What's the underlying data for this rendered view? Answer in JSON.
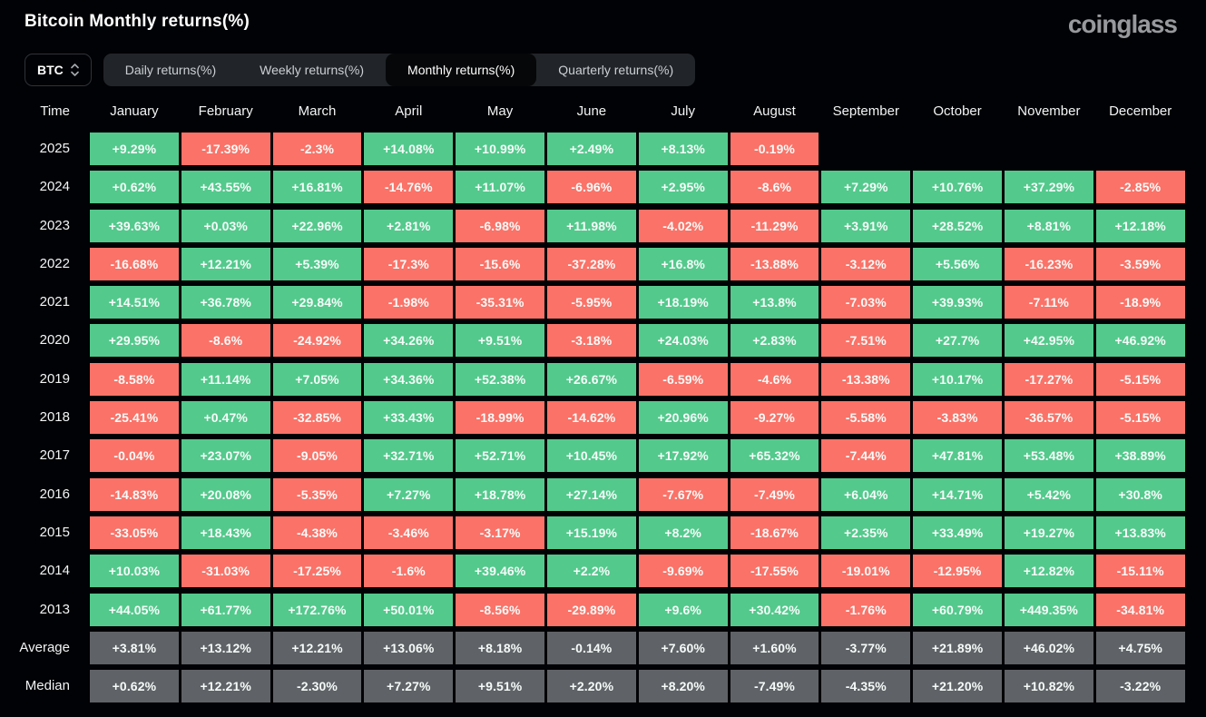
{
  "page": {
    "title": "Bitcoin Monthly returns(%)",
    "logo": "coinglass"
  },
  "controls": {
    "symbol": "BTC",
    "tabs": [
      {
        "label": "Daily returns(%)",
        "active": false
      },
      {
        "label": "Weekly returns(%)",
        "active": false
      },
      {
        "label": "Monthly returns(%)",
        "active": true
      },
      {
        "label": "Quarterly returns(%)",
        "active": false
      }
    ]
  },
  "colors": {
    "positive": "#53c98c",
    "negative": "#fa7268",
    "neutral": "#5f6266",
    "background": "#010205"
  },
  "chart_data": {
    "type": "heatmap",
    "title": "Bitcoin Monthly returns(%)",
    "columns": [
      "Time",
      "January",
      "February",
      "March",
      "April",
      "May",
      "June",
      "July",
      "August",
      "September",
      "October",
      "November",
      "December"
    ],
    "rows": [
      {
        "label": "2025",
        "stat": false,
        "values": [
          "+9.29%",
          "-17.39%",
          "-2.3%",
          "+14.08%",
          "+10.99%",
          "+2.49%",
          "+8.13%",
          "-0.19%",
          "",
          "",
          "",
          ""
        ]
      },
      {
        "label": "2024",
        "stat": false,
        "values": [
          "+0.62%",
          "+43.55%",
          "+16.81%",
          "-14.76%",
          "+11.07%",
          "-6.96%",
          "+2.95%",
          "-8.6%",
          "+7.29%",
          "+10.76%",
          "+37.29%",
          "-2.85%"
        ]
      },
      {
        "label": "2023",
        "stat": false,
        "values": [
          "+39.63%",
          "+0.03%",
          "+22.96%",
          "+2.81%",
          "-6.98%",
          "+11.98%",
          "-4.02%",
          "-11.29%",
          "+3.91%",
          "+28.52%",
          "+8.81%",
          "+12.18%"
        ]
      },
      {
        "label": "2022",
        "stat": false,
        "values": [
          "-16.68%",
          "+12.21%",
          "+5.39%",
          "-17.3%",
          "-15.6%",
          "-37.28%",
          "+16.8%",
          "-13.88%",
          "-3.12%",
          "+5.56%",
          "-16.23%",
          "-3.59%"
        ]
      },
      {
        "label": "2021",
        "stat": false,
        "values": [
          "+14.51%",
          "+36.78%",
          "+29.84%",
          "-1.98%",
          "-35.31%",
          "-5.95%",
          "+18.19%",
          "+13.8%",
          "-7.03%",
          "+39.93%",
          "-7.11%",
          "-18.9%"
        ]
      },
      {
        "label": "2020",
        "stat": false,
        "values": [
          "+29.95%",
          "-8.6%",
          "-24.92%",
          "+34.26%",
          "+9.51%",
          "-3.18%",
          "+24.03%",
          "+2.83%",
          "-7.51%",
          "+27.7%",
          "+42.95%",
          "+46.92%"
        ]
      },
      {
        "label": "2019",
        "stat": false,
        "values": [
          "-8.58%",
          "+11.14%",
          "+7.05%",
          "+34.36%",
          "+52.38%",
          "+26.67%",
          "-6.59%",
          "-4.6%",
          "-13.38%",
          "+10.17%",
          "-17.27%",
          "-5.15%"
        ]
      },
      {
        "label": "2018",
        "stat": false,
        "values": [
          "-25.41%",
          "+0.47%",
          "-32.85%",
          "+33.43%",
          "-18.99%",
          "-14.62%",
          "+20.96%",
          "-9.27%",
          "-5.58%",
          "-3.83%",
          "-36.57%",
          "-5.15%"
        ]
      },
      {
        "label": "2017",
        "stat": false,
        "values": [
          "-0.04%",
          "+23.07%",
          "-9.05%",
          "+32.71%",
          "+52.71%",
          "+10.45%",
          "+17.92%",
          "+65.32%",
          "-7.44%",
          "+47.81%",
          "+53.48%",
          "+38.89%"
        ]
      },
      {
        "label": "2016",
        "stat": false,
        "values": [
          "-14.83%",
          "+20.08%",
          "-5.35%",
          "+7.27%",
          "+18.78%",
          "+27.14%",
          "-7.67%",
          "-7.49%",
          "+6.04%",
          "+14.71%",
          "+5.42%",
          "+30.8%"
        ]
      },
      {
        "label": "2015",
        "stat": false,
        "values": [
          "-33.05%",
          "+18.43%",
          "-4.38%",
          "-3.46%",
          "-3.17%",
          "+15.19%",
          "+8.2%",
          "-18.67%",
          "+2.35%",
          "+33.49%",
          "+19.27%",
          "+13.83%"
        ]
      },
      {
        "label": "2014",
        "stat": false,
        "values": [
          "+10.03%",
          "-31.03%",
          "-17.25%",
          "-1.6%",
          "+39.46%",
          "+2.2%",
          "-9.69%",
          "-17.55%",
          "-19.01%",
          "-12.95%",
          "+12.82%",
          "-15.11%"
        ]
      },
      {
        "label": "2013",
        "stat": false,
        "values": [
          "+44.05%",
          "+61.77%",
          "+172.76%",
          "+50.01%",
          "-8.56%",
          "-29.89%",
          "+9.6%",
          "+30.42%",
          "-1.76%",
          "+60.79%",
          "+449.35%",
          "-34.81%"
        ]
      },
      {
        "label": "Average",
        "stat": true,
        "values": [
          "+3.81%",
          "+13.12%",
          "+12.21%",
          "+13.06%",
          "+8.18%",
          "-0.14%",
          "+7.60%",
          "+1.60%",
          "-3.77%",
          "+21.89%",
          "+46.02%",
          "+4.75%"
        ]
      },
      {
        "label": "Median",
        "stat": true,
        "values": [
          "+0.62%",
          "+12.21%",
          "-2.30%",
          "+7.27%",
          "+9.51%",
          "+2.20%",
          "+8.20%",
          "-7.49%",
          "-4.35%",
          "+21.20%",
          "+10.82%",
          "-3.22%"
        ]
      }
    ]
  }
}
